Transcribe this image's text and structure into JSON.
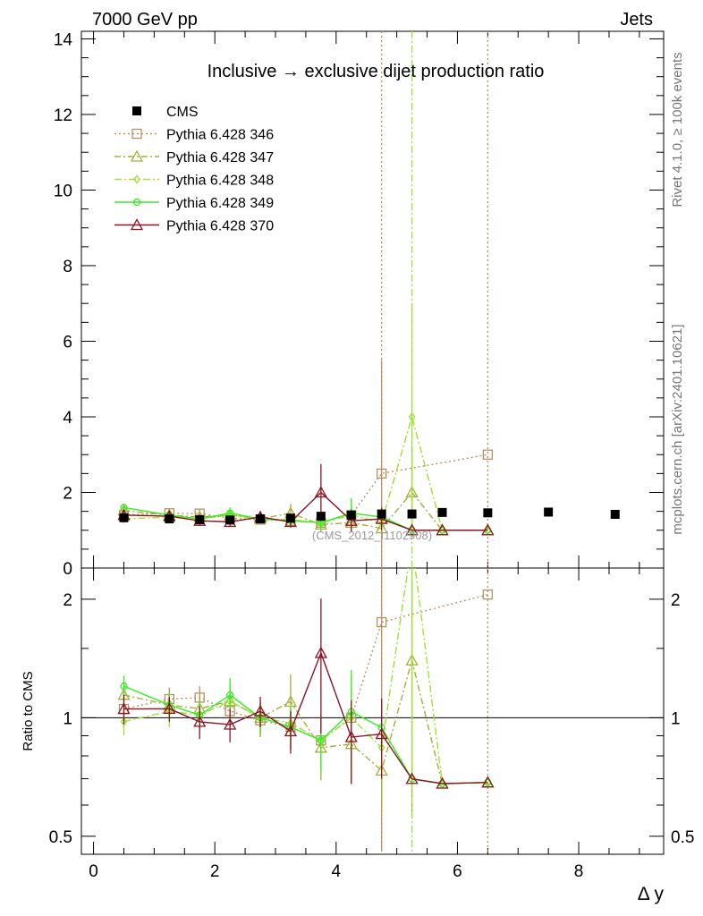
{
  "header": {
    "left": "7000 GeV pp",
    "right": "Jets",
    "side_top": "Rivet 4.1.0, ≥ 100k events",
    "side_bottom": "mcplots.cern.ch [arXiv:2401.10621]"
  },
  "chart_data": {
    "type": "line",
    "title": "Inclusive → exclusive dijet production ratio",
    "watermark": "(CMS_2012_I1102908)",
    "xlabel": "Δ y",
    "ylabel": "",
    "ratio_ylabel": "Ratio to CMS",
    "xlim": [
      -0.2,
      9.4
    ],
    "ylim": [
      0,
      14.2
    ],
    "ratio_ylim_log": [
      0.45,
      2.4
    ],
    "x_ticks": [
      "0",
      "2",
      "4",
      "6",
      "8"
    ],
    "y_ticks": [
      "0",
      "2",
      "4",
      "6",
      "8",
      "10",
      "12",
      "14"
    ],
    "ratio_ticks": [
      "0.5",
      "1",
      "2"
    ],
    "reference": {
      "name": "CMS",
      "color": "#000000",
      "x": [
        0.5,
        1.25,
        1.75,
        2.25,
        2.75,
        3.25,
        3.75,
        4.25,
        4.75,
        5.25,
        5.75,
        6.5,
        7.5,
        8.6
      ],
      "y": [
        1.33,
        1.3,
        1.28,
        1.27,
        1.3,
        1.32,
        1.37,
        1.4,
        1.43,
        1.43,
        1.47,
        1.46,
        1.48,
        1.42
      ]
    },
    "series": [
      {
        "name": "Pythia 6.428 346",
        "color": "#b89160",
        "dash": "2,3",
        "marker": "square",
        "x": [
          0.5,
          1.25,
          1.75,
          2.25,
          2.75,
          3.25,
          3.75,
          4.25,
          4.75,
          6.5
        ],
        "y": [
          1.4,
          1.45,
          1.44,
          1.32,
          1.28,
          1.25,
          1.2,
          1.4,
          2.5,
          3.0
        ],
        "err": [
          0.15,
          0.1,
          0.1,
          0.1,
          0.12,
          0.15,
          0.2,
          0.25,
          3.0,
          0
        ],
        "verticals": [
          4.75,
          6.5
        ]
      },
      {
        "name": "Pythia 6.428 347",
        "color": "#a6ad3a",
        "dash": "7,3,2,3",
        "marker": "triangle",
        "x": [
          0.5,
          1.25,
          1.75,
          2.25,
          2.75,
          3.25,
          3.75,
          4.25,
          4.75,
          5.25,
          5.75,
          6.5
        ],
        "y": [
          1.52,
          1.4,
          1.35,
          1.4,
          1.3,
          1.45,
          1.15,
          1.2,
          1.05,
          2.0,
          1.0,
          1.0
        ],
        "err": [
          0.12,
          0.12,
          0.1,
          0.15,
          0.12,
          0.25,
          0.2,
          0.25,
          0.2,
          1.2,
          0,
          0
        ]
      },
      {
        "name": "Pythia 6.428 348",
        "color": "#9ae233",
        "dash": "8,3,2,3",
        "marker": "diamond",
        "x": [
          0.5,
          1.25,
          1.75,
          2.25,
          2.75,
          3.25,
          3.75,
          4.25,
          4.75,
          5.25,
          5.75,
          6.5
        ],
        "y": [
          1.3,
          1.35,
          1.3,
          1.4,
          1.3,
          1.28,
          1.2,
          1.4,
          1.2,
          4.0,
          1.0,
          1.0
        ],
        "err": [
          0.1,
          0.12,
          0.1,
          0.2,
          0.12,
          0.15,
          0.2,
          0.4,
          0.2,
          3.0,
          0,
          0
        ],
        "verticals": [
          5.25
        ]
      },
      {
        "name": "Pythia 6.428 349",
        "color": "#33ee22",
        "dash": "",
        "marker": "circle",
        "x": [
          0.5,
          1.25,
          1.75,
          2.25,
          2.75,
          3.25,
          3.75,
          4.25,
          4.75,
          5.25,
          5.75,
          6.5
        ],
        "y": [
          1.6,
          1.4,
          1.3,
          1.45,
          1.3,
          1.25,
          1.2,
          1.45,
          1.35,
          1.0,
          1.0,
          1.0
        ],
        "err": [
          0.1,
          0.1,
          0.1,
          0.15,
          0.12,
          0.15,
          0.2,
          0.4,
          0.2,
          0,
          0,
          0
        ]
      },
      {
        "name": "Pythia 6.428 370",
        "color": "#8b1522",
        "dash": "",
        "marker": "triangle",
        "x": [
          0.5,
          1.25,
          1.75,
          2.25,
          2.75,
          3.25,
          3.75,
          4.25,
          4.75,
          5.25,
          5.75,
          6.5
        ],
        "y": [
          1.4,
          1.37,
          1.25,
          1.22,
          1.35,
          1.22,
          2.0,
          1.25,
          1.3,
          1.0,
          1.0,
          1.0
        ],
        "err": [
          0.12,
          0.1,
          0.12,
          0.12,
          0.12,
          0.15,
          0.75,
          0.3,
          0.3,
          0,
          0,
          0
        ]
      }
    ]
  }
}
